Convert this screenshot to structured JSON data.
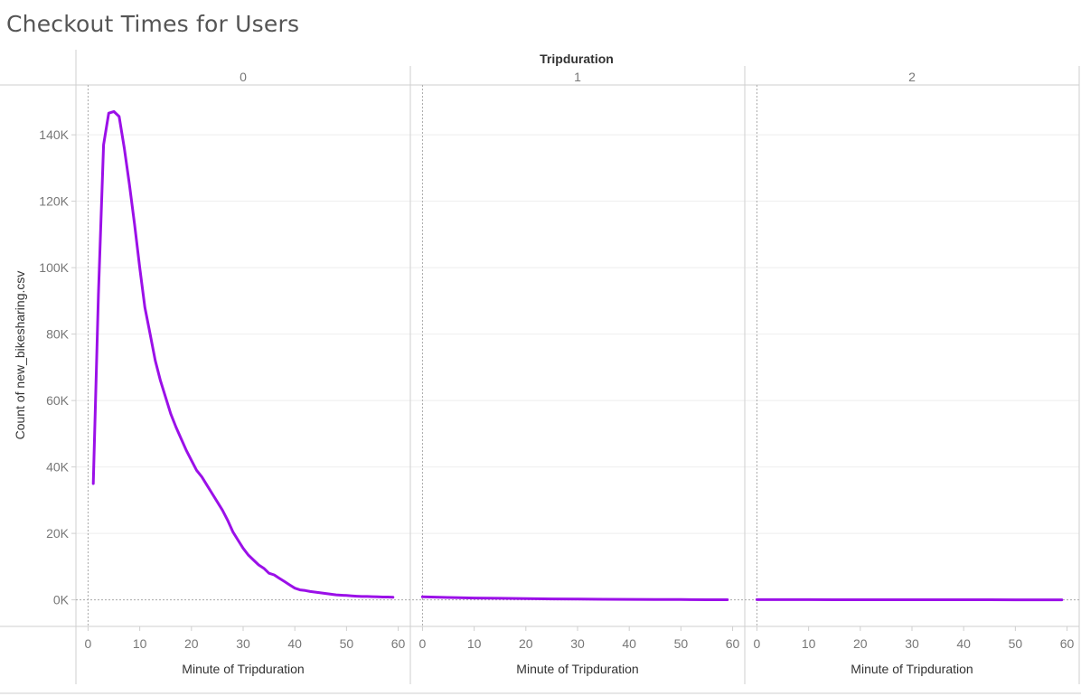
{
  "title": "Checkout Times for Users",
  "chart_data": {
    "type": "line",
    "column_header": "Tripduration",
    "xlabel": "Minute of Tripduration",
    "ylabel": "Count of new_bikesharing.csv",
    "xlim": [
      -2,
      62
    ],
    "ylim": [
      -8000,
      155000
    ],
    "x_ticks": [
      0,
      10,
      20,
      30,
      40,
      50,
      60
    ],
    "y_ticks": [
      0,
      20000,
      40000,
      60000,
      80000,
      100000,
      120000,
      140000
    ],
    "y_tick_labels": [
      "0K",
      "20K",
      "40K",
      "60K",
      "80K",
      "100K",
      "120K",
      "140K"
    ],
    "line_color": "#9B10E8",
    "grid": true,
    "panels": [
      {
        "label": "0",
        "x": [
          1,
          2,
          3,
          4,
          5,
          6,
          7,
          8,
          9,
          10,
          11,
          12,
          13,
          14,
          15,
          16,
          17,
          18,
          19,
          20,
          21,
          22,
          23,
          24,
          25,
          26,
          27,
          28,
          29,
          30,
          31,
          32,
          33,
          34,
          35,
          36,
          37,
          38,
          39,
          40,
          41,
          42,
          43,
          44,
          45,
          46,
          47,
          48,
          49,
          50,
          51,
          52,
          53,
          54,
          55,
          56,
          57,
          58,
          59
        ],
        "y": [
          35000,
          92000,
          137000,
          146500,
          147000,
          145500,
          136000,
          125000,
          113000,
          100000,
          88000,
          80000,
          72000,
          66000,
          61000,
          56000,
          52000,
          48500,
          45000,
          42000,
          39000,
          37000,
          34500,
          32000,
          29500,
          27000,
          24000,
          20500,
          18000,
          15500,
          13500,
          12000,
          10500,
          9500,
          8000,
          7500,
          6500,
          5500,
          4500,
          3500,
          3000,
          2800,
          2500,
          2300,
          2100,
          1900,
          1700,
          1500,
          1400,
          1300,
          1200,
          1100,
          1000,
          1000,
          950,
          900,
          850,
          850,
          800
        ]
      },
      {
        "label": "1",
        "x": [
          0,
          5,
          10,
          15,
          20,
          25,
          30,
          35,
          40,
          45,
          50,
          55,
          59
        ],
        "y": [
          900,
          700,
          550,
          450,
          350,
          280,
          220,
          170,
          130,
          100,
          70,
          40,
          20
        ]
      },
      {
        "label": "2",
        "x": [
          0,
          5,
          10,
          15,
          20,
          25,
          30,
          35,
          40,
          45,
          50,
          55,
          59
        ],
        "y": [
          60,
          50,
          45,
          40,
          35,
          30,
          25,
          20,
          18,
          15,
          12,
          10,
          8
        ]
      }
    ]
  }
}
